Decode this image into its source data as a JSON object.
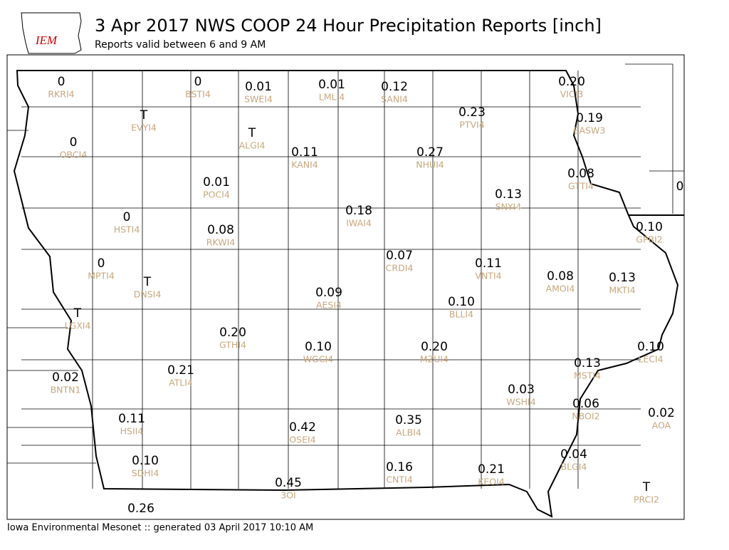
{
  "header": {
    "logo": "IEM",
    "title": "3 Apr 2017 NWS COOP 24 Hour Precipitation Reports [inch]",
    "subtitle": "Reports valid between 6 and 9 AM"
  },
  "stations": [
    {
      "value": "0",
      "id": "RKRI4"
    },
    {
      "value": "0",
      "id": "BSTI4"
    },
    {
      "value": "0.01",
      "id": "SWEI4"
    },
    {
      "value": "0.01",
      "id": "LMLI4"
    },
    {
      "value": "0.12",
      "id": "SANI4"
    },
    {
      "value": "0.20",
      "id": "VICI3"
    },
    {
      "value": "T",
      "id": "EVYI4"
    },
    {
      "value": "0.23",
      "id": "PTVI4"
    },
    {
      "value": "0.19",
      "id": "EASW3"
    },
    {
      "value": "T",
      "id": "ALGI4"
    },
    {
      "value": "0",
      "id": "OBCI4"
    },
    {
      "value": "0.11",
      "id": "KANI4"
    },
    {
      "value": "0.27",
      "id": "NHUI4"
    },
    {
      "value": "0.08",
      "id": "GTTI4"
    },
    {
      "value": "0.01",
      "id": "POCI4"
    },
    {
      "value": "0.13",
      "id": "SNYI4"
    },
    {
      "value": "0"
    },
    {
      "value": "0.18",
      "id": "IWAI4"
    },
    {
      "value": "0",
      "id": "HSTI4"
    },
    {
      "value": "0.10",
      "id": "GPBI2"
    },
    {
      "value": "0.08",
      "id": "RKWI4"
    },
    {
      "value": "0.07",
      "id": "CRDI4"
    },
    {
      "value": "0",
      "id": "MPTI4"
    },
    {
      "value": "0.11",
      "id": "VNTI4"
    },
    {
      "value": "0.08",
      "id": "AMOI4"
    },
    {
      "value": "0.13",
      "id": "MKTI4"
    },
    {
      "value": "T",
      "id": "DNSI4"
    },
    {
      "value": "0.09",
      "id": "AESI4"
    },
    {
      "value": "0.10",
      "id": "BLLI4"
    },
    {
      "value": "T",
      "id": "LGXI4"
    },
    {
      "value": "0.20",
      "id": "GTHI4"
    },
    {
      "value": "0.10",
      "id": "WGCI4"
    },
    {
      "value": "0.20",
      "id": "MZUI4"
    },
    {
      "value": "0.10",
      "id": "LECI4"
    },
    {
      "value": "0.13",
      "id": "MSTI4"
    },
    {
      "value": "0.21",
      "id": "ATLI4"
    },
    {
      "value": "0.02",
      "id": "BNTN1"
    },
    {
      "value": "0.03",
      "id": "WSHI4"
    },
    {
      "value": "0.06",
      "id": "NBOI2"
    },
    {
      "value": "0.02",
      "id": "AOA"
    },
    {
      "value": "0.11",
      "id": "HSII4"
    },
    {
      "value": "0.35",
      "id": "ALBI4"
    },
    {
      "value": "0.42",
      "id": "OSEI4"
    },
    {
      "value": "0.04",
      "id": "BLGI4"
    },
    {
      "value": "0.10",
      "id": "SDHI4"
    },
    {
      "value": "0.16",
      "id": "CNTI4"
    },
    {
      "value": "0.21",
      "id": "KEOI4"
    },
    {
      "value": "0.45",
      "id": "3OI"
    },
    {
      "value": "T",
      "id": "PRCI2"
    },
    {
      "value": "0.26"
    }
  ],
  "footer": "Iowa Environmental Mesonet :: generated 03 April 2017 10:10 AM"
}
